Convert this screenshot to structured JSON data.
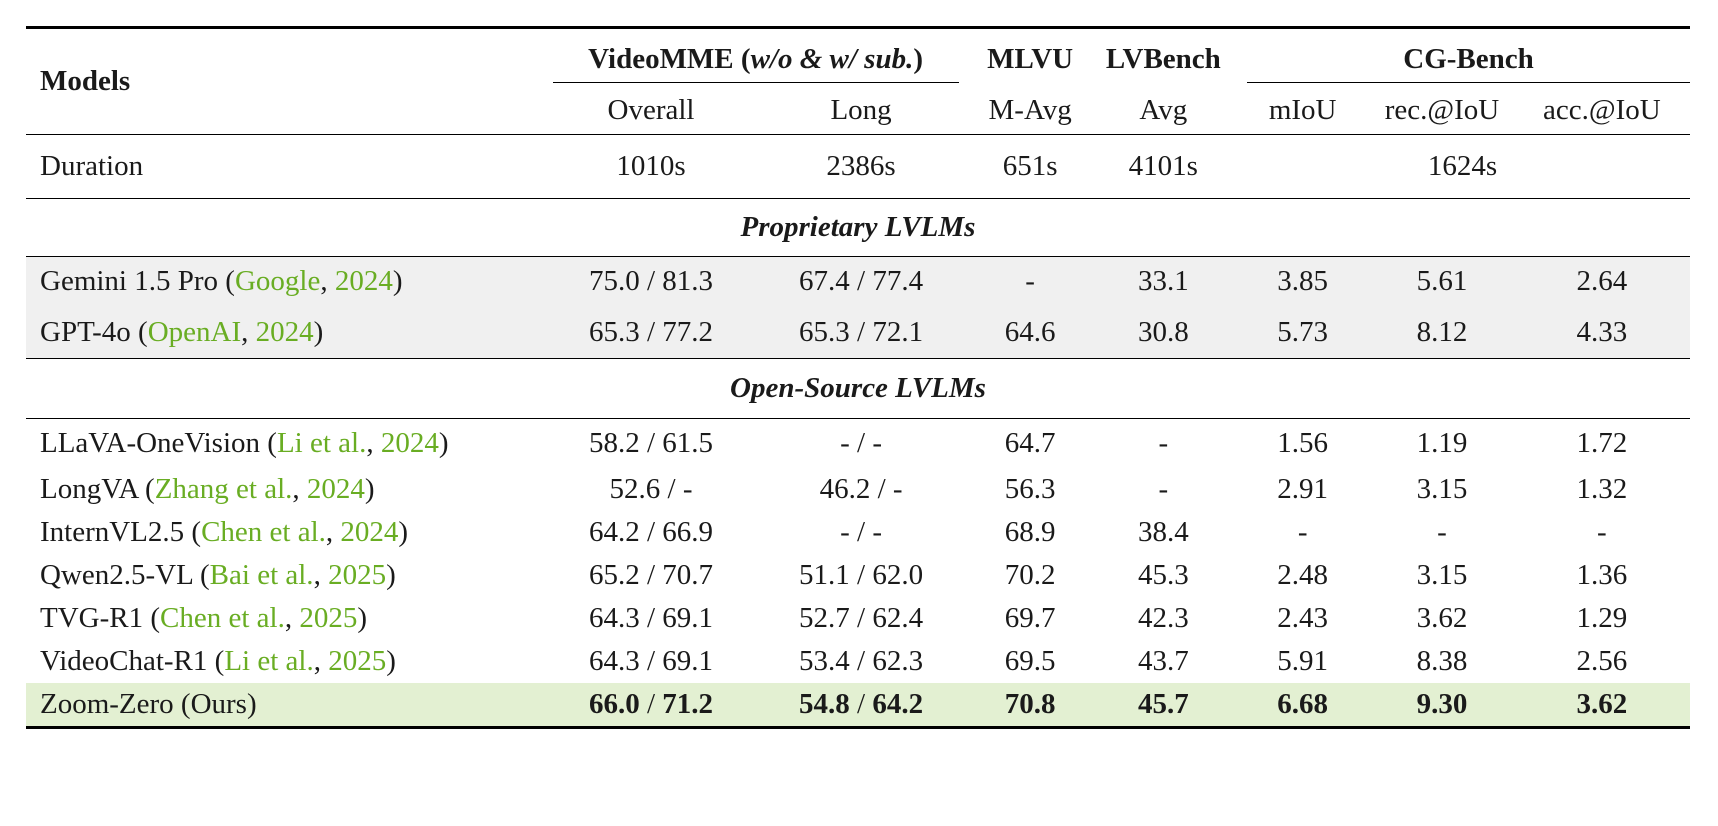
{
  "header": {
    "models": "Models",
    "videomme": {
      "name": "VideoMME",
      "paren_open": " (",
      "sub": "w/o & w/ sub.",
      "paren_close": ")"
    },
    "mlvu": "MLVU",
    "lvbench": "LVBench",
    "cgbench": "CG-Bench",
    "subcols": [
      "Overall",
      "Long",
      "M-Avg",
      "Avg",
      "mIoU",
      "rec.@IoU",
      "acc.@IoU"
    ]
  },
  "duration": {
    "label": "Duration",
    "values": [
      "1010s",
      "2386s",
      "651s",
      "4101s",
      "1624s"
    ]
  },
  "sections": {
    "proprietary": "Proprietary LVLMs",
    "open_source": "Open-Source LVLMs"
  },
  "proprietary_rows": [
    {
      "name": "Gemini 1.5 Pro",
      "cite": "Google",
      "year": "2024",
      "values": [
        "75.0 / 81.3",
        "67.4 / 77.4",
        "-",
        "33.1",
        "3.85",
        "5.61",
        "2.64"
      ]
    },
    {
      "name": "GPT-4o",
      "cite": "OpenAI",
      "year": "2024",
      "values": [
        "65.3 / 77.2",
        "65.3 / 72.1",
        "64.6",
        "30.8",
        "5.73",
        "8.12",
        "4.33"
      ]
    }
  ],
  "open_rows": [
    {
      "name": "LLaVA-OneVision",
      "cite": "Li et al.",
      "year": "2024",
      "values": [
        "58.2 / 61.5",
        "- / -",
        "64.7",
        "-",
        "1.56",
        "1.19",
        "1.72"
      ]
    },
    {
      "name": "LongVA",
      "cite": "Zhang et al.",
      "year": "2024",
      "values": [
        "52.6 / -",
        "46.2 / -",
        "56.3",
        "-",
        "2.91",
        "3.15",
        "1.32"
      ]
    },
    {
      "name": "InternVL2.5",
      "cite": "Chen et al.",
      "year": "2024",
      "values": [
        "64.2 / 66.9",
        "-  /  -",
        "68.9",
        "38.4",
        "-",
        "-",
        "-"
      ]
    },
    {
      "name": "Qwen2.5-VL",
      "cite": "Bai et al.",
      "year": "2025",
      "values": [
        "65.2 / 70.7",
        "51.1 / 62.0",
        "70.2",
        "45.3",
        "2.48",
        "3.15",
        "1.36"
      ]
    },
    {
      "name": "TVG-R1",
      "cite": "Chen et al.",
      "year": "2025",
      "values": [
        "64.3 / 69.1",
        "52.7 / 62.4",
        "69.7",
        "42.3",
        "2.43",
        "3.62",
        "1.29"
      ]
    },
    {
      "name": "VideoChat-R1",
      "cite": "Li et al.",
      "year": "2025",
      "values": [
        "64.3 / 69.1",
        "53.4 / 62.3",
        "69.5",
        "43.7",
        "5.91",
        "8.38",
        "2.56"
      ]
    }
  ],
  "ours_row": {
    "name": "Zoom-Zero (Ours)",
    "overall": [
      "66.0",
      "71.2"
    ],
    "long": [
      "54.8",
      "64.2"
    ],
    "rest": [
      "70.8",
      "45.7",
      "6.68",
      "9.30",
      "3.62"
    ]
  }
}
